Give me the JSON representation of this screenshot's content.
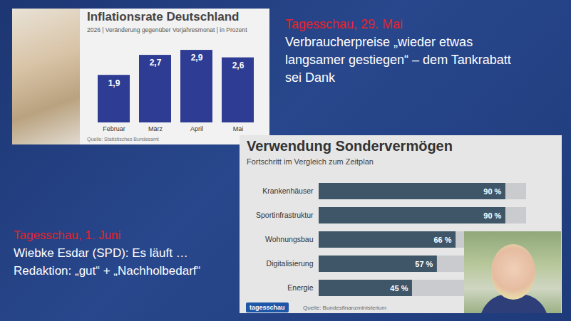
{
  "chart_data": [
    {
      "type": "bar",
      "title": "Inflationsrate Deutschland",
      "subtitle": "2026 | Veränderung gegenüber Vorjahresmonat | in Prozent",
      "source": "Quelle: Statistisches Bundesamt",
      "categories": [
        "Februar",
        "März",
        "April",
        "Mai"
      ],
      "values": [
        1.9,
        2.7,
        2.9,
        2.6
      ],
      "value_labels": [
        "1,9",
        "2,7",
        "2,9",
        "2,6"
      ],
      "color": "#2e3c93",
      "ylim": [
        0,
        3.3
      ],
      "data_labels": true,
      "tick_labels": "x",
      "annotations": [
        "Tagesschau, 29. Mai",
        "Verbraucherpreise „wieder etwas langsamer gestiegen“ – dem Tankrabatt sei Dank"
      ]
    },
    {
      "type": "bar",
      "title": "Verwendung Sondervermögen",
      "subtitle": "Fortschritt im Vergleich zum Zeitplan",
      "source": "Quelle: Bundesfinanzministerium",
      "logo": "tagesschau",
      "orientation": "horizontal",
      "categories": [
        "Krankenhäuser",
        "Sportinfrastruktur",
        "Wohnungsbau",
        "Digitalisierung",
        "Energie"
      ],
      "values": [
        90,
        90,
        66,
        57,
        45
      ],
      "value_labels": [
        "90 %",
        "90 %",
        "66 %",
        "57 %",
        "45 %"
      ],
      "color": "#3e5667",
      "xlim": [
        0,
        100
      ],
      "data_labels": true,
      "tick_labels": "y",
      "annotations": [
        "Tagesschau, 1. Juni",
        "Wiebke Esdar (SPD): Es läuft …",
        "Redaktion: „gut“ + „Nachholbedarf“"
      ]
    }
  ]
}
